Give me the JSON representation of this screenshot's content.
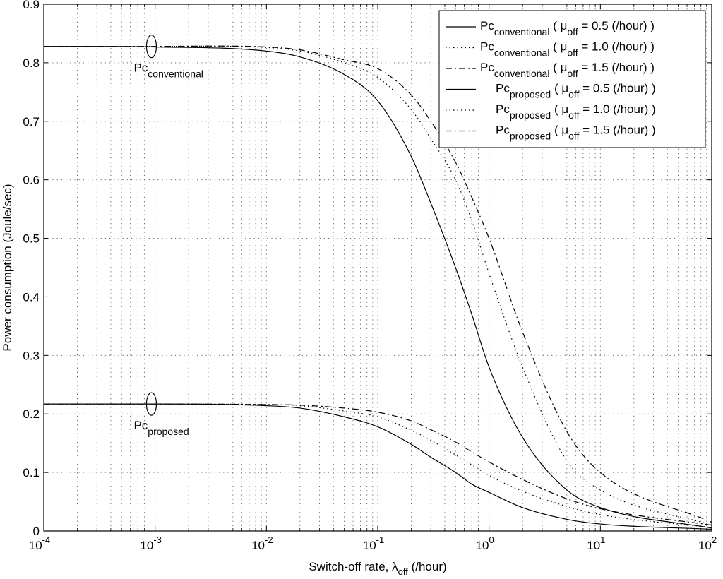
{
  "chart_data": {
    "type": "line",
    "xscale": "log",
    "xlim": [
      0.0001,
      100
    ],
    "ylim": [
      0,
      0.9
    ],
    "grid": true,
    "legend_position": "top-right",
    "xlabel": {
      "main": "Switch-off rate, λ",
      "sub": "off",
      "unit": " (/hour)"
    },
    "ylabel": "Power consumption (Joule/sec)",
    "xticks": [
      {
        "base": "10",
        "exp": "-4"
      },
      {
        "base": "10",
        "exp": "-3"
      },
      {
        "base": "10",
        "exp": "-2"
      },
      {
        "base": "10",
        "exp": "-1"
      },
      {
        "base": "10",
        "exp": "0"
      },
      {
        "base": "10",
        "exp": "1"
      },
      {
        "base": "10",
        "exp": "2"
      }
    ],
    "yticks": [
      "0",
      "0.1",
      "0.2",
      "0.3",
      "0.4",
      "0.5",
      "0.6",
      "0.7",
      "0.8",
      "0.9"
    ],
    "series": [
      {
        "name": {
          "main": "Pc",
          "sub": "conventional",
          "mu": "μ",
          "musub": "off",
          "rest": " = 0.5 (/hour) )"
        },
        "style": "solid",
        "x": [
          0.0001,
          0.001,
          0.01,
          0.02,
          0.05,
          0.1,
          0.2,
          0.3,
          0.5,
          0.7,
          1,
          2,
          5,
          10,
          100
        ],
        "y": [
          0.828,
          0.827,
          0.82,
          0.81,
          0.78,
          0.735,
          0.64,
          0.56,
          0.45,
          0.37,
          0.28,
          0.16,
          0.07,
          0.04,
          0.005
        ]
      },
      {
        "name": {
          "main": "Pc",
          "sub": "conventional",
          "mu": "μ",
          "musub": "off",
          "rest": " = 1.0 (/hour) )"
        },
        "style": "dotted",
        "x": [
          0.0001,
          0.001,
          0.01,
          0.02,
          0.05,
          0.1,
          0.2,
          0.3,
          0.5,
          0.7,
          1,
          2,
          5,
          10,
          100
        ],
        "y": [
          0.828,
          0.828,
          0.826,
          0.82,
          0.8,
          0.775,
          0.72,
          0.67,
          0.6,
          0.53,
          0.44,
          0.28,
          0.12,
          0.07,
          0.01
        ]
      },
      {
        "name": {
          "main": "Pc",
          "sub": "conventional",
          "mu": "μ",
          "musub": "off",
          "rest": " = 1.5 (/hour) )"
        },
        "style": "dashdot",
        "x": [
          0.0001,
          0.001,
          0.01,
          0.02,
          0.05,
          0.1,
          0.2,
          0.3,
          0.5,
          0.7,
          1,
          2,
          5,
          10,
          100
        ],
        "y": [
          0.828,
          0.828,
          0.827,
          0.822,
          0.805,
          0.79,
          0.745,
          0.7,
          0.63,
          0.57,
          0.5,
          0.34,
          0.17,
          0.1,
          0.015
        ]
      },
      {
        "name": {
          "main": "Pc",
          "sub": "proposed",
          "mu": "μ",
          "musub": "off",
          "rest": " = 0.5 (/hour) )"
        },
        "style": "solid",
        "x": [
          0.0001,
          0.001,
          0.01,
          0.02,
          0.05,
          0.1,
          0.2,
          0.3,
          0.5,
          0.7,
          1,
          2,
          5,
          10,
          100
        ],
        "y": [
          0.217,
          0.217,
          0.214,
          0.21,
          0.195,
          0.178,
          0.148,
          0.126,
          0.1,
          0.08,
          0.066,
          0.04,
          0.02,
          0.012,
          0.003
        ]
      },
      {
        "name": {
          "main": "Pc",
          "sub": "proposed",
          "mu": "μ",
          "musub": "off",
          "rest": " = 1.0 (/hour) )"
        },
        "style": "dotted",
        "x": [
          0.0001,
          0.001,
          0.01,
          0.02,
          0.05,
          0.1,
          0.2,
          0.3,
          0.5,
          0.7,
          1,
          2,
          5,
          10,
          100
        ],
        "y": [
          0.217,
          0.217,
          0.216,
          0.214,
          0.205,
          0.195,
          0.172,
          0.155,
          0.13,
          0.113,
          0.095,
          0.068,
          0.042,
          0.028,
          0.006
        ]
      },
      {
        "name": {
          "main": "Pc",
          "sub": "proposed",
          "mu": "μ",
          "musub": "off",
          "rest": " = 1.5 (/hour) )"
        },
        "style": "dashdot",
        "x": [
          0.0001,
          0.001,
          0.01,
          0.02,
          0.05,
          0.1,
          0.2,
          0.3,
          0.5,
          0.7,
          1,
          2,
          5,
          10,
          100
        ],
        "y": [
          0.217,
          0.217,
          0.216,
          0.215,
          0.21,
          0.203,
          0.188,
          0.173,
          0.152,
          0.135,
          0.118,
          0.088,
          0.055,
          0.038,
          0.01
        ]
      }
    ],
    "annotations": [
      {
        "main": "Pc",
        "sub": "conventional",
        "x": 0.0009,
        "y": 0.828
      },
      {
        "main": "Pc",
        "sub": "proposed",
        "x": 0.0009,
        "y": 0.217
      }
    ]
  }
}
